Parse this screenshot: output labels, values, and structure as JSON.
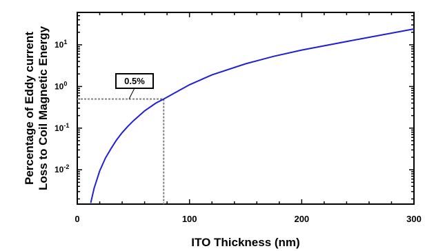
{
  "chart_data": {
    "type": "line",
    "title": "",
    "xlabel": "ITO Thickness (nm)",
    "ylabel_lines": [
      "Percentage of Eddy current",
      "Loss to Coil Magnetic Energy"
    ],
    "xlim": [
      0,
      300
    ],
    "ylim": [
      0.0015,
      60
    ],
    "yscale": "log",
    "xticks": [
      {
        "value": 0,
        "label": "0"
      },
      {
        "value": 100,
        "label": "100"
      },
      {
        "value": 200,
        "label": "200"
      },
      {
        "value": 300,
        "label": "300"
      }
    ],
    "yticks": [
      {
        "value": 0.01,
        "base": "10",
        "exp": "-2"
      },
      {
        "value": 0.1,
        "base": "10",
        "exp": "-1"
      },
      {
        "value": 1,
        "base": "10",
        "exp": "0"
      },
      {
        "value": 10,
        "base": "10",
        "exp": "1"
      }
    ],
    "grid": false,
    "series": [
      {
        "color": "#1f1fd6",
        "x": [
          12,
          15,
          20,
          25,
          30,
          35,
          40,
          45,
          50,
          60,
          70,
          77,
          90,
          100,
          120,
          150,
          175,
          200,
          250,
          300
        ],
        "y": [
          0.0016,
          0.0036,
          0.0094,
          0.019,
          0.032,
          0.052,
          0.078,
          0.11,
          0.15,
          0.26,
          0.4,
          0.5,
          0.78,
          1.1,
          1.9,
          3.5,
          5.3,
          7.5,
          13.5,
          24
        ]
      }
    ],
    "annotation": {
      "label": "0.5%",
      "x": 77,
      "y": 0.5,
      "line_color": "#808080"
    }
  }
}
